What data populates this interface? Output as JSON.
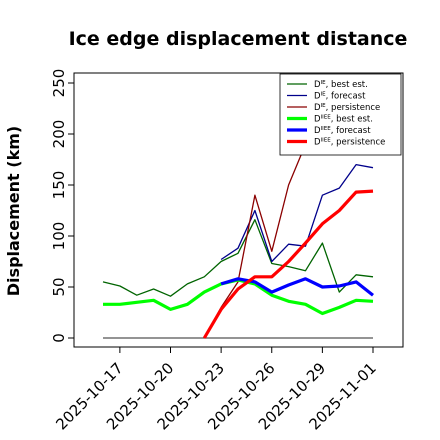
{
  "chart_data": {
    "type": "line",
    "title": "Ice edge displacement distance",
    "ylabel": "Displacement (km)",
    "xlabel": "",
    "ylim": [
      0,
      260
    ],
    "y_ticks": [
      0,
      50,
      100,
      150,
      200,
      250
    ],
    "x_ticks": [
      "2025-10-17",
      "2025-10-20",
      "2025-10-23",
      "2025-10-26",
      "2025-10-29",
      "2025-11-01"
    ],
    "highlighted_tick": "2025-10-23",
    "highlight_color": "#228b22",
    "grid": false,
    "legend_position": "top-right",
    "x": [
      "2025-10-16",
      "2025-10-17",
      "2025-10-18",
      "2025-10-19",
      "2025-10-20",
      "2025-10-21",
      "2025-10-22",
      "2025-10-23",
      "2025-10-24",
      "2025-10-25",
      "2025-10-26",
      "2025-10-27",
      "2025-10-28",
      "2025-10-29",
      "2025-10-30",
      "2025-10-31",
      "2025-11-01"
    ],
    "baseline": {
      "y": 0,
      "x_from": "2025-10-16",
      "x_to": "2025-11-01",
      "color": "#555555"
    },
    "series": [
      {
        "name": "DIE, best est.",
        "legend_base": "D",
        "legend_sup": "IE",
        "legend_rest": ", best est.",
        "color": "#006400",
        "width": 1.3,
        "values": [
          55,
          51,
          42,
          48,
          41,
          53,
          60,
          75,
          83,
          116,
          73,
          70,
          66,
          93,
          45,
          62,
          60
        ]
      },
      {
        "name": "DIE, forecast",
        "legend_base": "D",
        "legend_sup": "IE",
        "legend_rest": ", forecast",
        "color": "#00008b",
        "width": 1.3,
        "values": [
          null,
          null,
          null,
          null,
          null,
          null,
          null,
          77,
          88,
          125,
          75,
          92,
          90,
          140,
          147,
          170,
          167
        ]
      },
      {
        "name": "DIE, persistence",
        "legend_base": "D",
        "legend_sup": "IE",
        "legend_rest": ", persistence",
        "color": "#8b0000",
        "width": 1.3,
        "values": [
          null,
          null,
          null,
          null,
          null,
          null,
          0,
          30,
          55,
          140,
          85,
          150,
          190,
          null,
          null,
          null,
          null
        ]
      },
      {
        "name": "DIIEE, best est.",
        "legend_base": "D",
        "legend_sup": "IIEE",
        "legend_rest": ", best est.",
        "color": "#00ff00",
        "width": 3.2,
        "values": [
          33,
          33,
          35,
          37,
          28,
          33,
          45,
          53,
          57,
          53,
          42,
          36,
          33,
          24,
          30,
          37,
          36
        ]
      },
      {
        "name": "DIIEE, forecast",
        "legend_base": "D",
        "legend_sup": "IIEE",
        "legend_rest": ", forecast",
        "color": "#0000ff",
        "width": 3.2,
        "values": [
          null,
          null,
          null,
          null,
          null,
          null,
          null,
          53,
          58,
          55,
          45,
          52,
          58,
          50,
          51,
          55,
          42
        ]
      },
      {
        "name": "DIIEE, persistence",
        "legend_base": "D",
        "legend_sup": "IIEE",
        "legend_rest": ", persistence",
        "color": "#ff0000",
        "width": 3.2,
        "values": [
          null,
          null,
          null,
          null,
          null,
          null,
          0,
          28,
          48,
          60,
          60,
          75,
          93,
          112,
          125,
          143,
          144
        ]
      }
    ]
  }
}
